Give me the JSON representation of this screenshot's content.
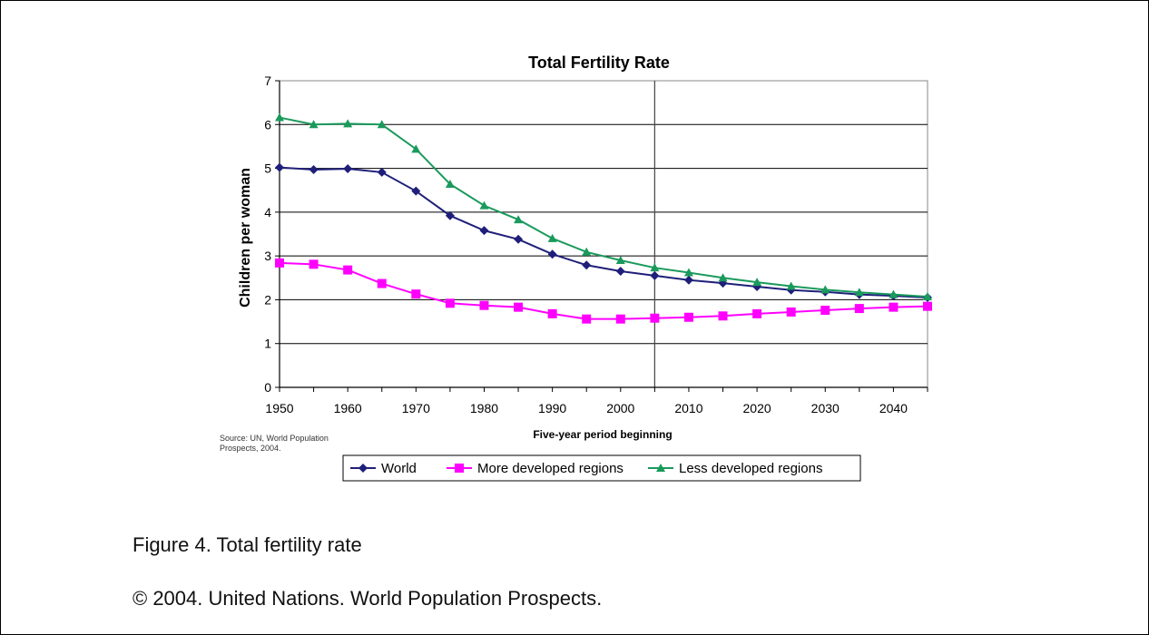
{
  "chart_data": {
    "type": "line",
    "title": "Total Fertility Rate",
    "xlabel": "Five-year period beginning",
    "ylabel": "Children per woman",
    "xlim": [
      1950,
      2045
    ],
    "ylim": [
      0,
      7
    ],
    "x_ticks": [
      1950,
      1960,
      1970,
      1980,
      1990,
      2000,
      2010,
      2020,
      2030,
      2040
    ],
    "y_ticks": [
      0,
      1,
      2,
      3,
      4,
      5,
      6,
      7
    ],
    "grid": "horizontal",
    "vertical_marker_x": 2005,
    "legend_position": "bottom",
    "x": [
      1950,
      1955,
      1960,
      1965,
      1970,
      1975,
      1980,
      1985,
      1990,
      1995,
      2000,
      2005,
      2010,
      2015,
      2020,
      2025,
      2030,
      2035,
      2040,
      2045
    ],
    "series": [
      {
        "name": "World",
        "color": "#1f1f7a",
        "marker": "diamond",
        "values": [
          5.02,
          4.97,
          4.99,
          4.91,
          4.48,
          3.92,
          3.58,
          3.38,
          3.04,
          2.79,
          2.65,
          2.55,
          2.45,
          2.38,
          2.3,
          2.22,
          2.18,
          2.12,
          2.09,
          2.05
        ]
      },
      {
        "name": "More developed regions",
        "color": "#ff00ff",
        "marker": "square",
        "values": [
          2.84,
          2.81,
          2.68,
          2.37,
          2.13,
          1.92,
          1.87,
          1.83,
          1.68,
          1.56,
          1.56,
          1.58,
          1.6,
          1.63,
          1.68,
          1.72,
          1.76,
          1.8,
          1.83,
          1.85
        ]
      },
      {
        "name": "Less developed regions",
        "color": "#1a9a5c",
        "marker": "triangle",
        "values": [
          6.16,
          6.0,
          6.02,
          6.0,
          5.44,
          4.64,
          4.15,
          3.83,
          3.4,
          3.09,
          2.9,
          2.73,
          2.62,
          2.5,
          2.4,
          2.31,
          2.23,
          2.17,
          2.12,
          2.07
        ]
      }
    ]
  },
  "source_note": "Source: UN, World Population Prospects, 2004.",
  "caption": "Figure 4. Total fertility rate",
  "copyright": "© 2004. United Nations. World Population Prospects."
}
